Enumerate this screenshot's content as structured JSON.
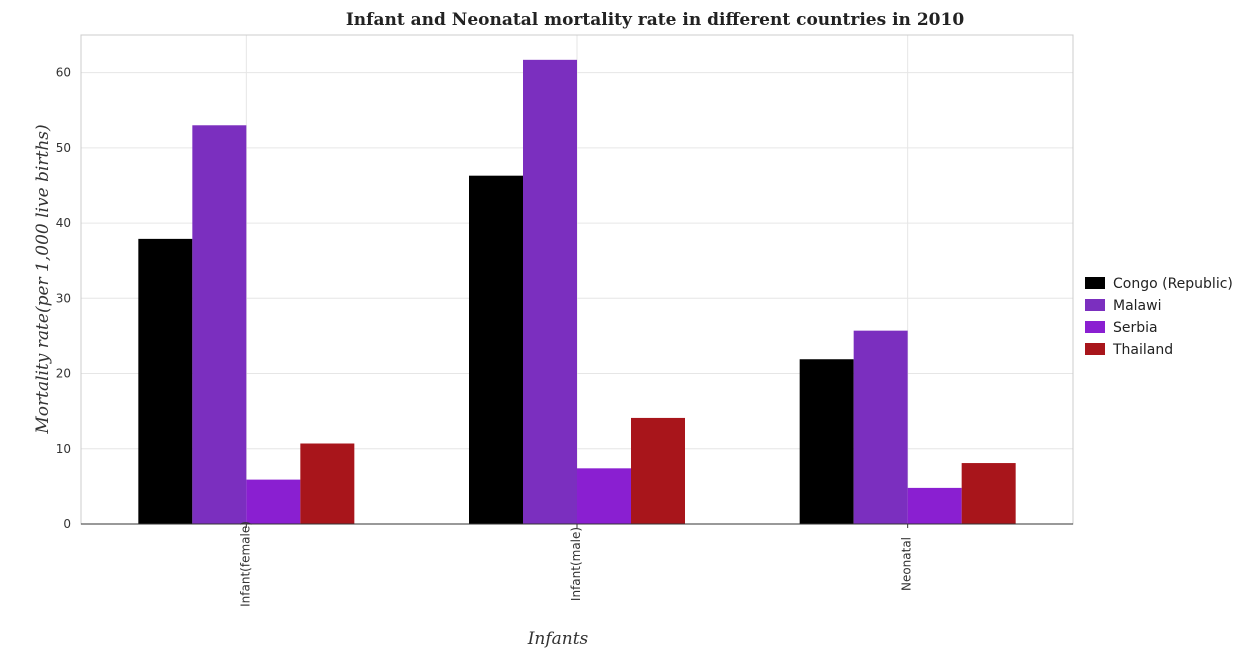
{
  "chart_data": {
    "type": "bar",
    "title": "Infant and Neonatal mortality rate in different countries in 2010",
    "xlabel": "Infants",
    "ylabel": "Mortality rate(per 1,000 live births)",
    "categories": [
      "Infant(female)",
      "Infant(male)",
      "Neonatal"
    ],
    "series": [
      {
        "name": "Congo (Republic)",
        "color": "#000000",
        "values": [
          37.9,
          46.3,
          21.9
        ]
      },
      {
        "name": "Malawi",
        "color": "#7b2fbf",
        "values": [
          53.0,
          61.7,
          25.7
        ]
      },
      {
        "name": "Serbia",
        "color": "#8a1fd1",
        "values": [
          5.9,
          7.4,
          4.8
        ]
      },
      {
        "name": "Thailand",
        "color": "#a8151b",
        "values": [
          10.7,
          14.1,
          8.1
        ]
      }
    ],
    "ylim": [
      0,
      65
    ],
    "yticks": [
      0,
      10,
      20,
      30,
      40,
      50,
      60
    ],
    "grid": true,
    "legend_position": "right"
  }
}
